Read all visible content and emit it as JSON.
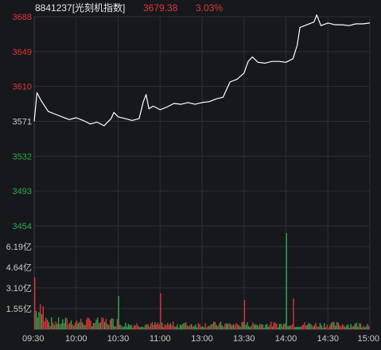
{
  "header": {
    "code_name": "8841237[光刻机指数]",
    "price": "3679.38",
    "change_pct": "3.03%"
  },
  "colors": {
    "background": "#16181c",
    "grid": "#2c2f36",
    "axis_text": "#c9c9c9",
    "up": "#e0353d",
    "down": "#2fa84a",
    "price_line": "#ffffff",
    "header_text": "#e6e6e6"
  },
  "chart_data": [
    {
      "type": "line",
      "title": "",
      "series": [
        {
          "name": "",
          "points": [
            [
              "09:30",
              3571
            ],
            [
              "09:32",
              3603
            ],
            [
              "09:35",
              3594
            ],
            [
              "09:40",
              3582
            ],
            [
              "09:45",
              3579
            ],
            [
              "09:50",
              3576
            ],
            [
              "09:55",
              3573
            ],
            [
              "10:00",
              3575
            ],
            [
              "10:05",
              3572
            ],
            [
              "10:10",
              3568
            ],
            [
              "10:15",
              3570
            ],
            [
              "10:20",
              3566
            ],
            [
              "10:25",
              3574
            ],
            [
              "10:27",
              3581
            ],
            [
              "10:30",
              3576
            ],
            [
              "10:35",
              3574
            ],
            [
              "10:40",
              3572
            ],
            [
              "10:45",
              3574
            ],
            [
              "10:48",
              3593
            ],
            [
              "10:50",
              3601
            ],
            [
              "10:52",
              3585
            ],
            [
              "10:55",
              3588
            ],
            [
              "11:00",
              3584
            ],
            [
              "11:05",
              3587
            ],
            [
              "11:10",
              3591
            ],
            [
              "11:15",
              3590
            ],
            [
              "11:20",
              3592
            ],
            [
              "11:25",
              3590
            ],
            [
              "11:30",
              3592
            ],
            [
              "13:00",
              3592
            ],
            [
              "13:05",
              3593
            ],
            [
              "13:10",
              3596
            ],
            [
              "13:15",
              3598
            ],
            [
              "13:20",
              3615
            ],
            [
              "13:25",
              3618
            ],
            [
              "13:30",
              3625
            ],
            [
              "13:33",
              3638
            ],
            [
              "13:36",
              3643
            ],
            [
              "13:40",
              3637
            ],
            [
              "13:45",
              3636
            ],
            [
              "13:50",
              3638
            ],
            [
              "13:55",
              3638
            ],
            [
              "14:00",
              3637
            ],
            [
              "14:05",
              3641
            ],
            [
              "14:08",
              3656
            ],
            [
              "14:10",
              3676
            ],
            [
              "14:15",
              3679
            ],
            [
              "14:20",
              3682
            ],
            [
              "14:22",
              3690
            ],
            [
              "14:25",
              3678
            ],
            [
              "14:30",
              3681
            ],
            [
              "14:35",
              3679
            ],
            [
              "14:40",
              3679
            ],
            [
              "14:45",
              3678
            ],
            [
              "14:50",
              3680
            ],
            [
              "14:55",
              3680
            ],
            [
              "15:00",
              3681
            ]
          ]
        }
      ],
      "ylim": [
        3454,
        3688
      ],
      "y_ticks": [
        3688,
        3649,
        3610,
        3571,
        3532,
        3493,
        3454
      ],
      "y_tick_labels": [
        "3688",
        "3649",
        "3610",
        "3571",
        "3532",
        "3493",
        "3454"
      ],
      "ref_price": 3571
    },
    {
      "type": "bar",
      "title": "",
      "x_ticks": [
        "09:30",
        "10:00",
        "10:30",
        "11:00",
        "13:00",
        "13:30",
        "14:00",
        "14:30",
        "15:00"
      ],
      "y_tick_labels": [
        "6.19亿",
        "4.64亿",
        "3.10亿",
        "1.55亿"
      ],
      "ylim": [
        0,
        7.74
      ],
      "notable_values": [
        [
          "09:30",
          3.9
        ],
        [
          "10:30",
          2.5
        ],
        [
          "11:00",
          2.7
        ],
        [
          "13:30",
          2.2
        ],
        [
          "14:00",
          7.2
        ],
        [
          "14:05",
          2.3
        ],
        [
          "15:00",
          2.6
        ]
      ]
    }
  ]
}
